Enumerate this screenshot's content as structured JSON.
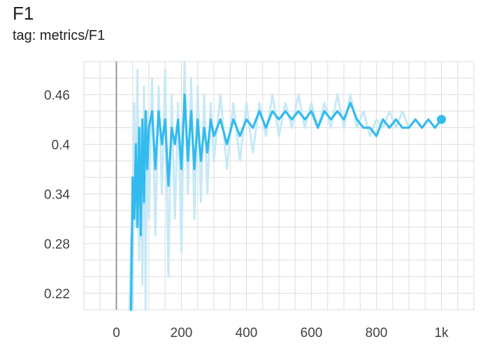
{
  "card": {
    "title": "F1",
    "subtitle": "tag: metrics/F1"
  },
  "chart_data": {
    "type": "line",
    "title": "F1",
    "subtitle": "tag: metrics/F1",
    "xlabel": "",
    "ylabel": "",
    "xlim": [
      -100,
      1100
    ],
    "ylim": [
      0.2,
      0.5
    ],
    "x_ticks": [
      0,
      200,
      400,
      600,
      800,
      1000
    ],
    "x_tick_labels": [
      "0",
      "200",
      "400",
      "600",
      "800",
      "1k"
    ],
    "y_ticks": [
      0.22,
      0.28,
      0.34,
      0.4,
      0.46
    ],
    "y_tick_labels": [
      "0.22",
      "0.28",
      "0.34",
      "0.4",
      "0.46"
    ],
    "grid": true,
    "legend": "none",
    "colors": {
      "smoothed": "#33bbee",
      "raw": "#c7e9f7",
      "grid": "#dddddd",
      "axis_zero": "#999999"
    },
    "series": [
      {
        "role": "raw",
        "x": [
          40,
          45,
          50,
          55,
          60,
          65,
          70,
          75,
          80,
          85,
          90,
          95,
          100,
          110,
          120,
          130,
          140,
          150,
          160,
          170,
          180,
          190,
          200,
          210,
          220,
          230,
          240,
          250,
          260,
          270,
          280,
          290,
          300,
          320,
          340,
          360,
          380,
          400,
          420,
          440,
          460,
          480,
          500,
          520,
          540,
          560,
          580,
          600,
          620,
          640,
          660,
          680,
          700,
          720,
          740,
          760,
          780,
          800,
          820,
          840,
          860,
          880,
          900,
          920,
          940,
          960,
          980,
          1000
        ],
        "y": [
          0.2,
          0.29,
          0.2,
          0.45,
          0.3,
          0.49,
          0.26,
          0.42,
          0.23,
          0.47,
          0.2,
          0.44,
          0.31,
          0.48,
          0.29,
          0.47,
          0.34,
          0.49,
          0.24,
          0.46,
          0.31,
          0.45,
          0.27,
          0.5,
          0.34,
          0.48,
          0.31,
          0.47,
          0.33,
          0.46,
          0.34,
          0.45,
          0.38,
          0.46,
          0.37,
          0.45,
          0.38,
          0.45,
          0.39,
          0.45,
          0.41,
          0.46,
          0.41,
          0.45,
          0.42,
          0.46,
          0.42,
          0.45,
          0.42,
          0.45,
          0.42,
          0.46,
          0.42,
          0.46,
          0.42,
          0.44,
          0.41,
          0.43,
          0.42,
          0.44,
          0.42,
          0.44,
          0.42,
          0.43,
          0.42,
          0.43,
          0.42,
          0.43
        ]
      },
      {
        "role": "smoothed",
        "x": [
          45,
          50,
          55,
          60,
          65,
          70,
          75,
          80,
          85,
          90,
          95,
          100,
          110,
          120,
          130,
          140,
          150,
          160,
          170,
          180,
          190,
          200,
          210,
          220,
          230,
          240,
          250,
          260,
          270,
          280,
          290,
          300,
          320,
          340,
          360,
          380,
          400,
          420,
          440,
          460,
          480,
          500,
          520,
          540,
          560,
          580,
          600,
          620,
          640,
          660,
          680,
          700,
          720,
          740,
          760,
          780,
          800,
          820,
          840,
          860,
          880,
          900,
          920,
          940,
          960,
          980,
          1000
        ],
        "y": [
          0.2,
          0.36,
          0.31,
          0.4,
          0.3,
          0.42,
          0.29,
          0.43,
          0.33,
          0.44,
          0.37,
          0.42,
          0.44,
          0.37,
          0.44,
          0.4,
          0.43,
          0.35,
          0.42,
          0.4,
          0.43,
          0.37,
          0.46,
          0.38,
          0.44,
          0.37,
          0.43,
          0.38,
          0.42,
          0.39,
          0.43,
          0.41,
          0.43,
          0.4,
          0.43,
          0.41,
          0.43,
          0.42,
          0.44,
          0.42,
          0.44,
          0.43,
          0.44,
          0.43,
          0.44,
          0.43,
          0.44,
          0.42,
          0.44,
          0.43,
          0.44,
          0.43,
          0.45,
          0.43,
          0.42,
          0.42,
          0.41,
          0.43,
          0.42,
          0.43,
          0.42,
          0.42,
          0.43,
          0.42,
          0.43,
          0.42,
          0.43
        ]
      }
    ]
  }
}
